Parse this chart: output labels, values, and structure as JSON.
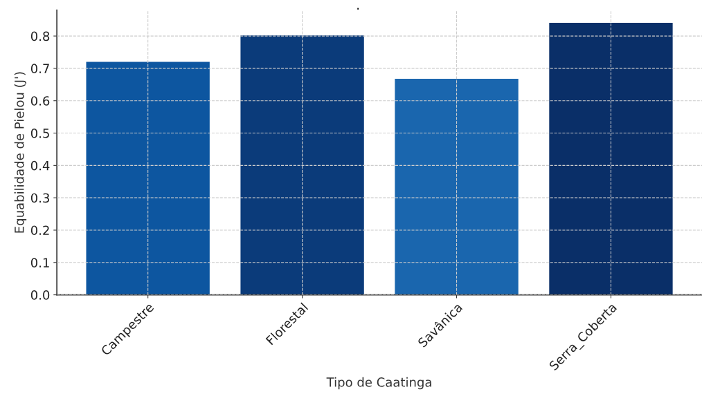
{
  "chart_data": {
    "type": "bar",
    "title": ".",
    "xlabel": "Tipo de Caatinga",
    "ylabel": "Equabilidade de Pielou (J')",
    "categories": [
      "Campestre",
      "Florestal",
      "Savânica",
      "Serra_Coberta"
    ],
    "values": [
      0.72,
      0.802,
      0.668,
      0.841
    ],
    "colors": [
      "#0d56a0",
      "#0b3b7a",
      "#1a66ae",
      "#0a2f68"
    ],
    "ylim": [
      0,
      0.88
    ],
    "yticks": [
      {
        "value": 0,
        "label": "0.0"
      },
      0.1,
      0.2,
      0.3,
      0.4,
      0.5,
      0.6,
      0.7,
      0.8
    ],
    "grid": true
  }
}
